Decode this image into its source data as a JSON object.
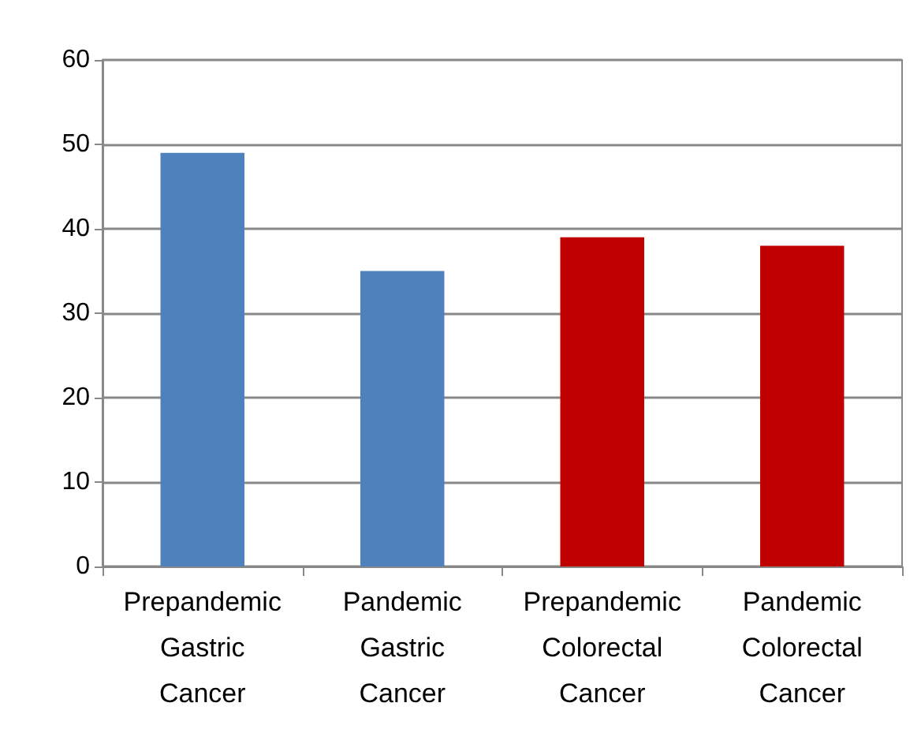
{
  "chart_data": {
    "type": "bar",
    "categories": [
      "Prepandemic\nGastric\nCancer",
      "Pandemic\nGastric\nCancer",
      "Prepandemic\nColorectal\nCancer",
      "Pandemic\nColorectal\nCancer"
    ],
    "values": [
      49,
      35,
      39,
      38
    ],
    "colors": [
      "#4f81bd",
      "#4f81bd",
      "#c00000",
      "#c00000"
    ],
    "ylim": [
      0,
      60
    ],
    "yticks": [
      0,
      10,
      20,
      30,
      40,
      50,
      60
    ],
    "grid": "y"
  }
}
